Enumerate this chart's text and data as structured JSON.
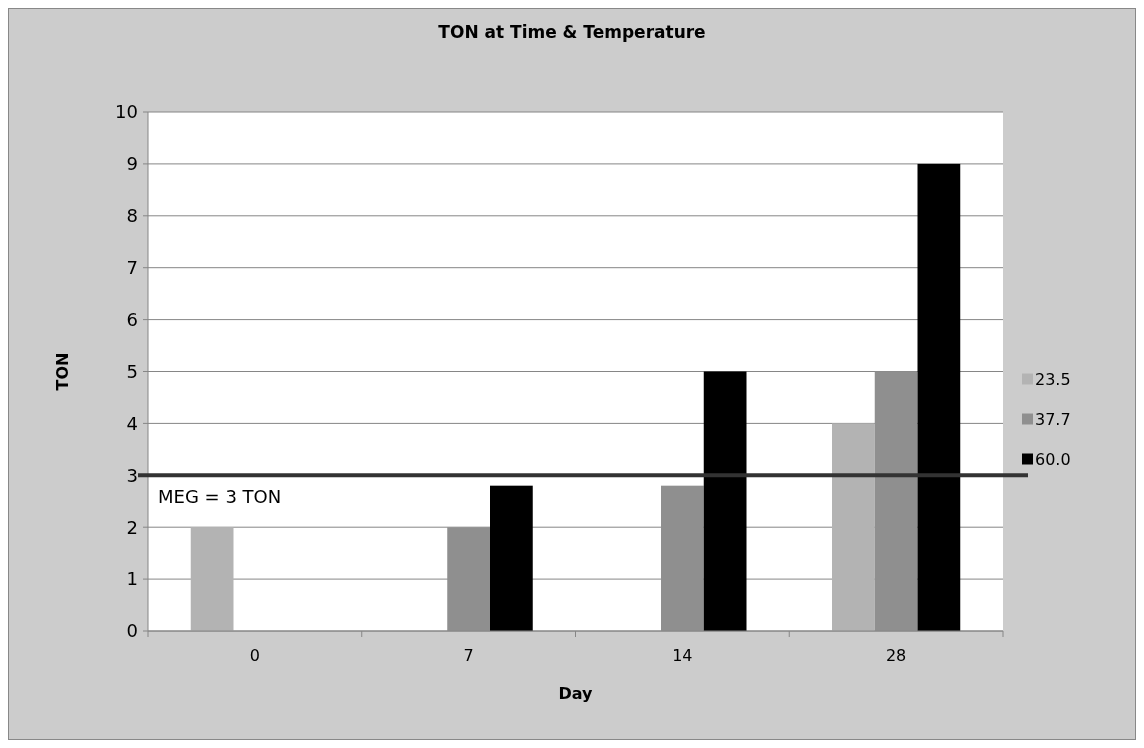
{
  "chart_data": {
    "type": "bar",
    "title": "TON at Time & Temperature",
    "xlabel": "Day",
    "ylabel": "TON",
    "categories": [
      "0",
      "7",
      "14",
      "28"
    ],
    "series": [
      {
        "name": "23.5",
        "color": "#b3b3b3",
        "values": [
          2,
          null,
          null,
          4
        ]
      },
      {
        "name": "37.7",
        "color": "#8f8f8f",
        "values": [
          null,
          2,
          2.8,
          5
        ]
      },
      {
        "name": "60.0",
        "color": "#000000",
        "values": [
          null,
          2.8,
          5,
          9
        ]
      }
    ],
    "ylim": [
      0,
      10
    ],
    "yticks": [
      0,
      1,
      2,
      3,
      4,
      5,
      6,
      7,
      8,
      9,
      10
    ],
    "grid": "y",
    "legend": "right",
    "ref_lines": [
      {
        "axis": "y",
        "value": 3,
        "label": "MEG = 3 TON",
        "color": "#333333"
      }
    ]
  }
}
